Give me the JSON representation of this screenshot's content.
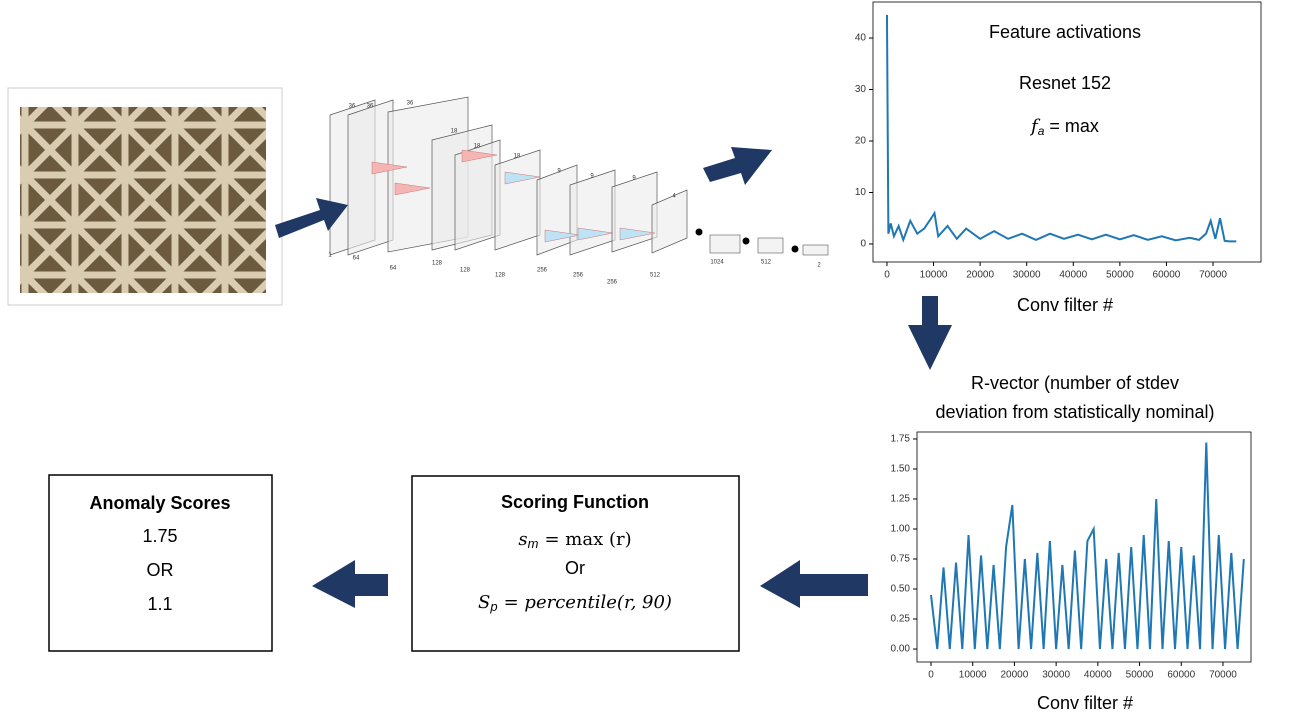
{
  "network": {
    "layer_depths": [
      1,
      64,
      64,
      128,
      128,
      128,
      256,
      256,
      256,
      512,
      1024,
      512,
      2
    ],
    "layer_sides": [
      36,
      36,
      36,
      18,
      18,
      18,
      9,
      9,
      9,
      4
    ]
  },
  "anomaly_box": {
    "title": "Anomaly Scores",
    "lines": [
      "1.75",
      "OR",
      "1.1"
    ]
  },
  "scoring_box": {
    "title": "Scoring Function",
    "formula_1": {
      "symbol": "s",
      "subscript": "m",
      "expression": "= max (r)"
    },
    "connector": "Or",
    "formula_2": {
      "symbol": "S",
      "subscript": "p",
      "expression": "= percentile(r, 90)"
    }
  },
  "chart_data": [
    {
      "type": "line",
      "title": "Feature activations",
      "subtitle": "Resnet 152",
      "annotation": {
        "symbol": "f",
        "subscript": "a",
        "expression": "= max"
      },
      "xlabel": "Conv filter #",
      "color": "#1f77b4",
      "xlim": [
        -3000,
        80300
      ],
      "ylim": [
        -3.5,
        47
      ],
      "xticks": [
        0,
        10000,
        20000,
        30000,
        40000,
        50000,
        60000,
        70000
      ],
      "yticks": [
        0,
        10,
        20,
        30,
        40
      ],
      "x": [
        0,
        300,
        800,
        1500,
        2500,
        3500,
        5000,
        6500,
        8000,
        9500,
        10200,
        11000,
        13000,
        15000,
        17000,
        20000,
        23000,
        26000,
        29000,
        32000,
        35000,
        38000,
        41000,
        44000,
        47000,
        50000,
        53000,
        56000,
        59000,
        62000,
        65000,
        67000,
        68500,
        69500,
        70500,
        71500,
        72500,
        73500,
        75000
      ],
      "values": [
        44.5,
        2,
        4,
        1.5,
        3.5,
        0.8,
        4.5,
        2,
        3,
        5,
        6,
        1.5,
        3.5,
        1,
        3,
        1,
        2.5,
        1,
        2,
        0.8,
        2,
        1,
        1.8,
        0.9,
        1.8,
        0.9,
        1.7,
        0.8,
        1.5,
        0.7,
        1.2,
        0.8,
        2,
        4.5,
        1,
        5,
        0.6,
        0.5,
        0.5
      ]
    },
    {
      "type": "line",
      "title_lines": [
        "R-vector (number of stdev",
        "deviation from statistically nominal)"
      ],
      "xlabel": "Conv filter #",
      "color": "#1f77b4",
      "xlim": [
        -3357,
        76720
      ],
      "ylim": [
        -0.108,
        1.808
      ],
      "xticks": [
        0,
        10000,
        20000,
        30000,
        40000,
        50000,
        60000,
        70000
      ],
      "yticks": [
        {
          "value": 0,
          "label": "0.00"
        },
        {
          "value": 0.25,
          "label": "0.25"
        },
        {
          "value": 0.5,
          "label": "0.50"
        },
        {
          "value": 0.75,
          "label": "0.75"
        },
        {
          "value": 1,
          "label": "1.00"
        },
        {
          "value": 1.25,
          "label": "1.25"
        },
        {
          "value": 1.5,
          "label": "1.50"
        },
        {
          "value": 1.75,
          "label": "1.75"
        }
      ],
      "x": [
        0,
        1500,
        3000,
        4500,
        6000,
        7500,
        9000,
        10500,
        12000,
        13500,
        15000,
        16500,
        18000,
        19500,
        21000,
        22500,
        24000,
        25500,
        27000,
        28500,
        30000,
        31500,
        33000,
        34500,
        36000,
        37500,
        39000,
        40500,
        42000,
        43500,
        45000,
        46500,
        48000,
        49500,
        51000,
        52500,
        54000,
        55500,
        57000,
        58500,
        60000,
        61500,
        63000,
        64500,
        66000,
        67500,
        69000,
        70500,
        72000,
        73500,
        75000
      ],
      "values": [
        0.45,
        0,
        0.68,
        0,
        0.72,
        0,
        0.95,
        0,
        0.78,
        0,
        0.7,
        0,
        0.85,
        1.2,
        0,
        0.75,
        0,
        0.8,
        0,
        0.9,
        0,
        0.7,
        0,
        0.82,
        0,
        0.9,
        1.0,
        0,
        0.75,
        0,
        0.8,
        0,
        0.85,
        0,
        0.95,
        0,
        1.25,
        0,
        0.9,
        0,
        0.85,
        0,
        0.78,
        0,
        1.72,
        0,
        0.95,
        0,
        0.8,
        0,
        0.75
      ]
    }
  ]
}
